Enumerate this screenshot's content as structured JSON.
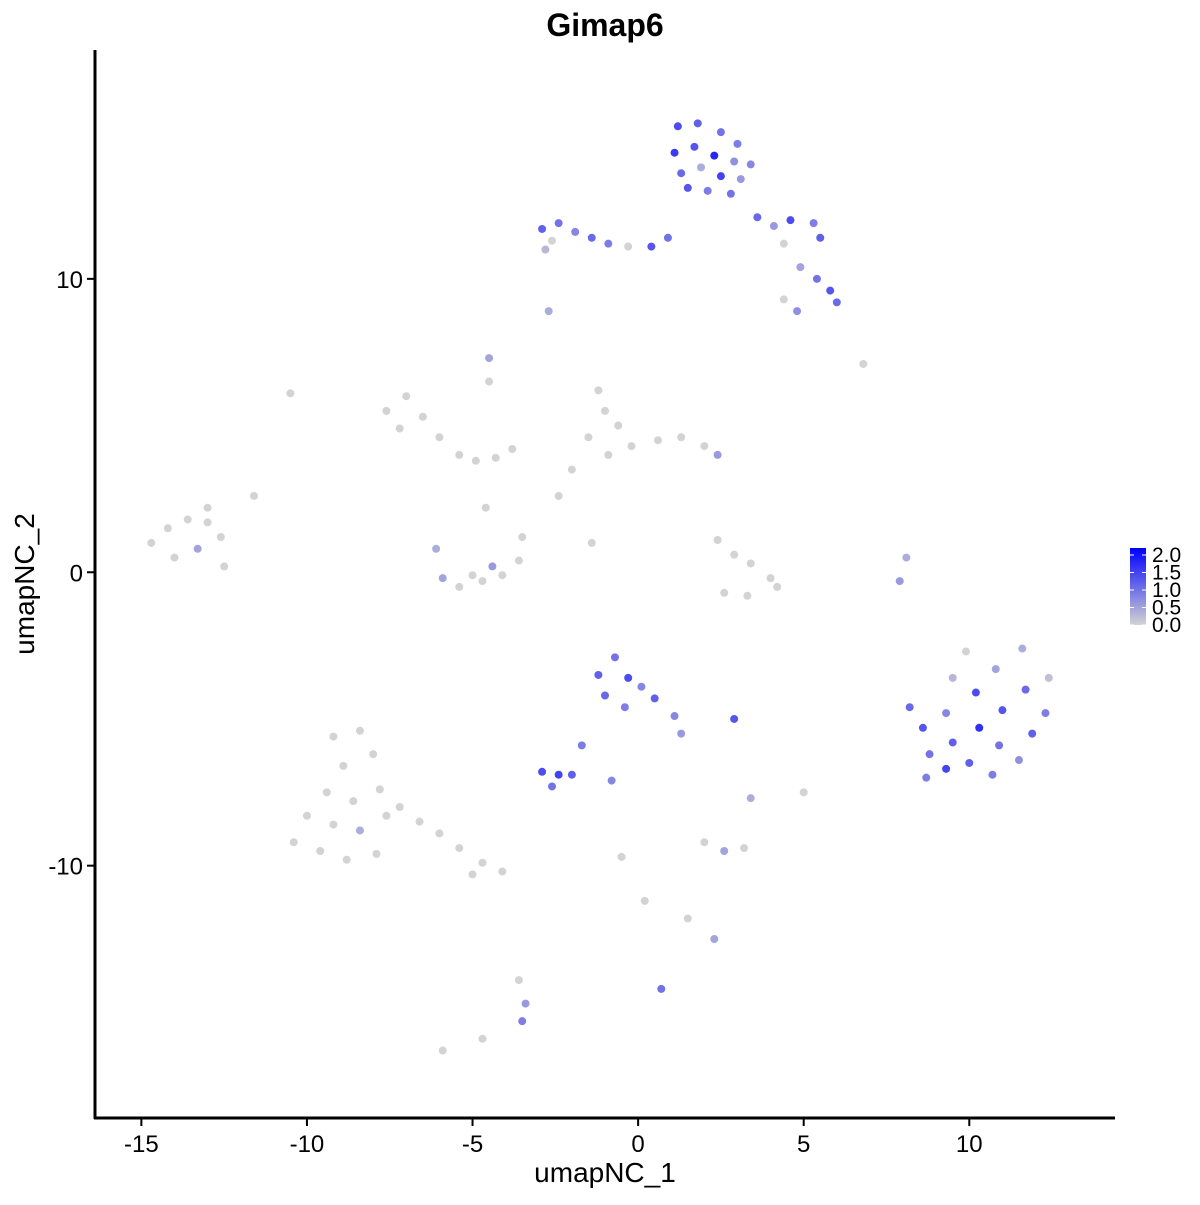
{
  "chart_data": {
    "type": "scatter",
    "title": "Gimap6",
    "x_label": "umapNC_1",
    "y_label": "umapNC_2",
    "xlim": [
      -16.4,
      14.4
    ],
    "ylim": [
      -18.6,
      17.8
    ],
    "xticks": [
      -15,
      -10,
      -5,
      0,
      5,
      10
    ],
    "yticks": [
      -10,
      0,
      10
    ],
    "color_scale": {
      "low": "#d3d3d3",
      "high": "#0000ff",
      "lim": [
        0,
        2.2
      ],
      "ticks": [
        {
          "value": 2.0,
          "label": "2.0"
        },
        {
          "value": 1.5,
          "label": "1.5"
        },
        {
          "value": 1.0,
          "label": "1.0"
        },
        {
          "value": 0.5,
          "label": "0.5"
        },
        {
          "value": 0.0,
          "label": "0.0"
        }
      ]
    },
    "x": [
      1.2,
      1.8,
      2.5,
      3.0,
      1.1,
      1.7,
      2.3,
      2.9,
      1.3,
      1.9,
      2.5,
      3.1,
      1.5,
      2.1,
      2.8,
      3.4,
      -2.9,
      -2.4,
      -1.9,
      -2.6,
      -1.4,
      -0.9,
      -0.3,
      0.4,
      0.9,
      -2.8,
      3.6,
      4.1,
      4.6,
      5.3,
      5.5,
      4.4,
      4.9,
      5.4,
      5.8,
      6.0,
      4.4,
      4.8,
      -2.7,
      6.8,
      -4.5,
      -7.6,
      -7.0,
      -6.5,
      -7.2,
      -6.0,
      -5.4,
      -4.9,
      -4.3,
      -4.5,
      -3.8,
      -1.2,
      -1.0,
      -0.6,
      -1.5,
      -0.9,
      -0.2,
      0.6,
      1.3,
      2.0,
      2.4,
      -2.0,
      -2.4,
      -14.7,
      -14.2,
      -13.6,
      -13.0,
      -12.6,
      -14.0,
      -13.3,
      -12.5,
      -13.0,
      -11.6,
      -6.1,
      -5.9,
      -5.4,
      -4.7,
      -4.1,
      -3.6,
      -3.5,
      -4.4,
      -5.0,
      -4.6,
      2.4,
      2.9,
      3.4,
      4.0,
      3.3,
      2.6,
      4.2,
      -1.4,
      7.9,
      8.1,
      -10.5,
      8.2,
      8.6,
      8.8,
      8.7,
      9.3,
      9.5,
      9.3,
      9.5,
      9.9,
      10.2,
      10.3,
      10.0,
      10.7,
      10.9,
      11.0,
      10.8,
      11.6,
      11.7,
      11.9,
      11.5,
      12.4,
      12.3,
      -1.2,
      -0.7,
      -0.3,
      0.1,
      -1.0,
      -0.4,
      0.5,
      1.1,
      1.3,
      -2.9,
      -2.4,
      -2.0,
      -2.6,
      -1.7,
      -0.8,
      2.9,
      3.4,
      -9.2,
      -8.4,
      -8.9,
      -8.0,
      -9.4,
      -8.6,
      -7.8,
      -10.0,
      -9.2,
      -8.4,
      -7.6,
      -10.4,
      -9.6,
      -8.8,
      -7.9,
      -7.2,
      -6.6,
      -6.0,
      -5.4,
      -4.7,
      -4.1,
      -5.0,
      5.0,
      2.0,
      2.6,
      3.2,
      0.2,
      -0.5,
      2.3,
      1.5,
      -3.6,
      -3.4,
      -3.5,
      0.7,
      -5.9,
      -4.7
    ],
    "y": [
      15.2,
      15.3,
      15.0,
      14.6,
      14.3,
      14.5,
      14.2,
      14.0,
      13.6,
      13.8,
      13.5,
      13.4,
      13.1,
      13.0,
      12.9,
      13.9,
      11.7,
      11.9,
      11.6,
      11.3,
      11.4,
      11.2,
      11.1,
      11.1,
      11.4,
      11.0,
      12.1,
      11.8,
      12.0,
      11.9,
      11.4,
      11.2,
      10.4,
      10.0,
      9.6,
      9.2,
      9.3,
      8.9,
      8.9,
      7.1,
      7.3,
      5.5,
      6.0,
      5.3,
      4.9,
      4.6,
      4.0,
      3.8,
      3.9,
      6.5,
      4.2,
      6.2,
      5.5,
      5.0,
      4.6,
      4.0,
      4.3,
      4.5,
      4.6,
      4.3,
      4.0,
      3.5,
      2.6,
      1.0,
      1.5,
      1.8,
      1.7,
      1.2,
      0.5,
      0.8,
      0.2,
      2.2,
      2.6,
      0.8,
      -0.2,
      -0.5,
      -0.3,
      -0.1,
      0.4,
      1.2,
      0.2,
      -0.1,
      2.2,
      1.1,
      0.6,
      0.3,
      -0.2,
      -0.8,
      -0.7,
      -0.5,
      1.0,
      -0.3,
      0.5,
      6.1,
      -4.6,
      -5.3,
      -6.2,
      -7.0,
      -6.7,
      -5.8,
      -4.8,
      -3.6,
      -2.7,
      -4.1,
      -5.3,
      -6.5,
      -6.9,
      -5.9,
      -4.7,
      -3.3,
      -2.6,
      -4.0,
      -5.5,
      -6.4,
      -3.6,
      -4.8,
      -3.5,
      -2.9,
      -3.6,
      -3.9,
      -4.2,
      -4.6,
      -4.3,
      -4.9,
      -5.5,
      -6.8,
      -6.9,
      -6.9,
      -7.3,
      -5.9,
      -7.1,
      -5.0,
      -7.7,
      -5.6,
      -5.4,
      -6.6,
      -6.2,
      -7.5,
      -7.8,
      -7.4,
      -8.3,
      -8.6,
      -8.8,
      -8.3,
      -9.2,
      -9.5,
      -9.8,
      -9.6,
      -8.0,
      -8.5,
      -8.9,
      -9.4,
      -9.9,
      -10.2,
      -10.3,
      -7.5,
      -9.2,
      -9.5,
      -9.4,
      -11.2,
      -9.7,
      -12.5,
      -11.8,
      -13.9,
      -14.7,
      -15.3,
      -14.2,
      -16.3,
      -15.9
    ],
    "values": [
      1.4,
      1.2,
      1.0,
      0.9,
      1.6,
      1.3,
      1.8,
      0.7,
      1.1,
      0.4,
      1.5,
      0.6,
      1.3,
      0.9,
      1.0,
      0.8,
      1.2,
      1.0,
      0.8,
      0.0,
      1.1,
      0.9,
      0.0,
      1.3,
      1.0,
      0.3,
      1.1,
      0.6,
      1.4,
      0.9,
      1.2,
      0.0,
      0.5,
      1.0,
      1.3,
      1.1,
      0.0,
      0.7,
      0.4,
      0.0,
      0.5,
      0,
      0,
      0,
      0,
      0,
      0,
      0,
      0,
      0,
      0,
      0,
      0,
      0,
      0,
      0,
      0,
      0,
      0,
      0,
      0.6,
      0,
      0,
      0,
      0,
      0,
      0,
      0,
      0,
      0.5,
      0,
      0,
      0,
      0.4,
      0.5,
      0,
      0,
      0,
      0,
      0,
      0.6,
      0,
      0,
      0,
      0,
      0,
      0,
      0,
      0,
      0,
      0,
      0.6,
      0.4,
      0,
      1.1,
      1.3,
      1.0,
      0.9,
      1.5,
      1.2,
      0.8,
      0.3,
      0.0,
      1.4,
      1.7,
      1.2,
      0.9,
      1.0,
      1.3,
      0.5,
      0.4,
      1.1,
      1.2,
      0.7,
      0.2,
      0.9,
      1.2,
      1.0,
      1.4,
      0.8,
      1.1,
      0.9,
      1.2,
      0.8,
      0.6,
      1.4,
      1.5,
      1.2,
      1.0,
      0.9,
      0.8,
      1.3,
      0.4,
      0,
      0,
      0,
      0,
      0,
      0,
      0,
      0,
      0,
      0.4,
      0,
      0,
      0,
      0,
      0,
      0,
      0,
      0,
      0,
      0,
      0,
      0,
      0,
      0,
      0.5,
      0,
      0,
      0,
      0.5,
      0,
      0,
      0.6,
      0.9,
      1.0,
      0,
      0
    ]
  }
}
